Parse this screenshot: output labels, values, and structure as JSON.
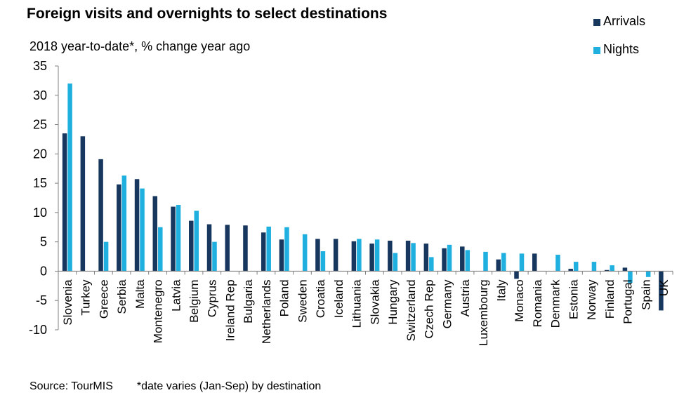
{
  "title": "Foreign visits and overnights to select destinations",
  "subtitle": "2018 year-to-date*, % change year ago",
  "source": "Source: TourMIS",
  "footnote": "*date varies (Jan-Sep) by destination",
  "colors": {
    "arrivals": "#17375e",
    "nights": "#1fb0e0",
    "axis": "#808080"
  },
  "chart_data": {
    "type": "bar",
    "title": "Foreign visits and overnights to select destinations",
    "subtitle": "2018 year-to-date*, % change year ago",
    "categories": [
      "Slovenia",
      "Turkey",
      "Greece",
      "Serbia",
      "Malta",
      "Montenegro",
      "Latvia",
      "Belgium",
      "Cyprus",
      "Ireland Rep",
      "Bulgaria",
      "Netherlands",
      "Poland",
      "Sweden",
      "Croatia",
      "Iceland",
      "Lithuania",
      "Slovakia",
      "Hungary",
      "Switzerland",
      "Czech Rep",
      "Germany",
      "Austria",
      "Luxembourg",
      "Italy",
      "Monaco",
      "Romania",
      "Denmark",
      "Estonia",
      "Norway",
      "Finland",
      "Portugal",
      "Spain",
      "UK"
    ],
    "series": [
      {
        "name": "Arrivals",
        "color": "#17375e",
        "values": [
          23.5,
          23.0,
          19.1,
          14.8,
          15.7,
          12.8,
          11.0,
          8.6,
          8.0,
          7.9,
          7.8,
          6.6,
          5.4,
          null,
          5.5,
          5.5,
          5.1,
          4.7,
          5.2,
          5.2,
          4.7,
          3.9,
          4.2,
          null,
          2.0,
          -1.3,
          3.0,
          null,
          0.4,
          null,
          0.2,
          0.6,
          null,
          -6.7
        ]
      },
      {
        "name": "Nights",
        "color": "#1fb0e0",
        "values": [
          32.0,
          null,
          5.0,
          16.3,
          14.1,
          7.5,
          11.3,
          10.3,
          5.0,
          null,
          null,
          7.6,
          7.5,
          6.3,
          3.4,
          null,
          5.5,
          5.4,
          3.1,
          4.8,
          2.4,
          4.5,
          3.6,
          3.3,
          3.1,
          3.0,
          null,
          2.8,
          1.6,
          1.6,
          1.0,
          -2.0,
          -1.0,
          null
        ]
      }
    ],
    "ylim": [
      -10,
      35
    ],
    "yticks": [
      -10,
      -5,
      0,
      5,
      10,
      15,
      20,
      25,
      30,
      35
    ],
    "legend_position": "top-right",
    "grid": false
  }
}
